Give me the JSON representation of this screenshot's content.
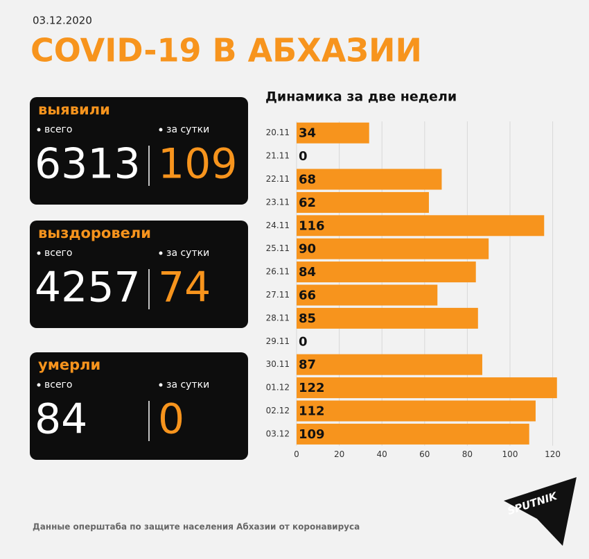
{
  "header": {
    "date": "03.12.2020",
    "title": "COVID-19 В АБХАЗИИ"
  },
  "cards": [
    {
      "label": "выявили",
      "total_label": "всего",
      "daily_label": "за сутки",
      "total": 6313,
      "daily": 109
    },
    {
      "label": "выздоровели",
      "total_label": "всего",
      "daily_label": "за сутки",
      "total": 4257,
      "daily": 74
    },
    {
      "label": "умерли",
      "total_label": "всего",
      "daily_label": "за сутки",
      "total": 84,
      "daily": 0
    }
  ],
  "chart_data": {
    "type": "bar",
    "orientation": "horizontal",
    "title": "Динамика за две недели",
    "categories": [
      "20.11",
      "21.11",
      "22.11",
      "23.11",
      "24.11",
      "25.11",
      "26.11",
      "27.11",
      "28.11",
      "29.11",
      "30.11",
      "01.12",
      "02.12",
      "03.12"
    ],
    "values": [
      34,
      0,
      68,
      62,
      116,
      90,
      84,
      66,
      85,
      0,
      87,
      122,
      112,
      109
    ],
    "color": "#f7941d",
    "xlim": [
      0,
      125
    ],
    "xticks": [
      0,
      20,
      40,
      60,
      80,
      100,
      120
    ],
    "grid": true
  },
  "footer": {
    "source": "Данные оперштаба по защите населения Абхазии от коронавируса",
    "logo": "SPUTNIK"
  }
}
